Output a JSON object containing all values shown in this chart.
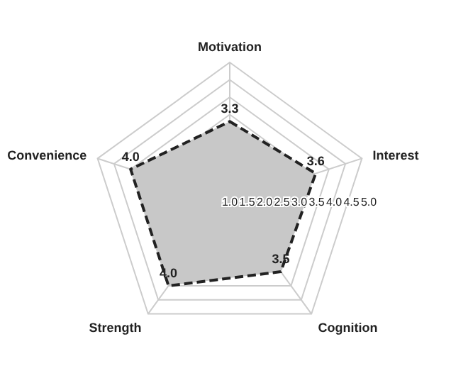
{
  "chart_data": {
    "type": "radar",
    "categories": [
      "Motivation",
      "Interest",
      "Cognition",
      "Strength",
      "Convenience"
    ],
    "series": [
      {
        "color": "#c8c8c8",
        "values": [
          3.3,
          3.6,
          3.5,
          4.0,
          4.0
        ],
        "value_labels": [
          "3.3",
          "3.6",
          "3.5",
          "4.0",
          "4.0"
        ]
      }
    ],
    "ylim": [
      1,
      5
    ],
    "yticks": [
      {
        "value": 1,
        "label": "1.0"
      },
      {
        "value": 1.5,
        "label": "1.5"
      },
      {
        "value": 2,
        "label": "2.0"
      },
      {
        "value": 2.5,
        "label": "2.5"
      },
      {
        "value": 3,
        "label": "3.0"
      },
      {
        "value": 3.5,
        "label": "3.5"
      },
      {
        "value": 4,
        "label": "4.0"
      },
      {
        "value": 4.5,
        "label": "4.5"
      },
      {
        "value": 5,
        "label": "5.0"
      }
    ],
    "grid": true,
    "line_style": "dashed",
    "marker": "none"
  }
}
